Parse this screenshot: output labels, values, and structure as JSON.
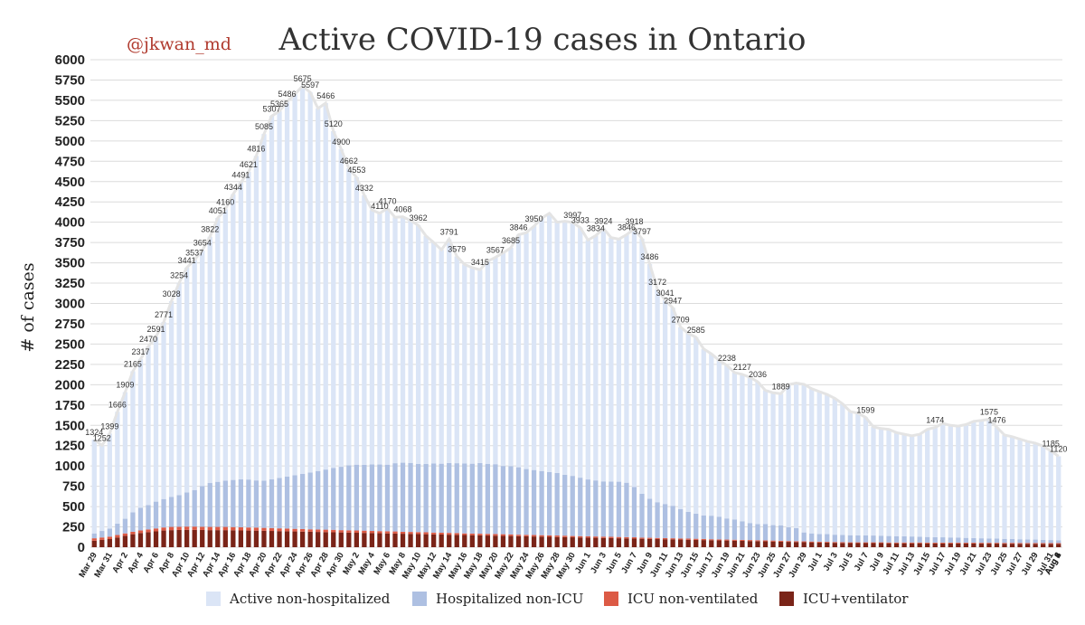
{
  "header": {
    "handle": "@jkwan_md",
    "title": "Active COVID-19 cases in Ontario"
  },
  "chart_data": {
    "type": "bar",
    "stacked": true,
    "title": "Active COVID-19 cases in Ontario",
    "xlabel": "",
    "ylabel": "# of cases",
    "ylim": [
      0,
      6000
    ],
    "yticks": [
      0,
      250,
      500,
      750,
      1000,
      1250,
      1500,
      1750,
      2000,
      2250,
      2500,
      2750,
      3000,
      3250,
      3500,
      3750,
      4000,
      4250,
      4500,
      4750,
      5000,
      5250,
      5500,
      5750,
      6000
    ],
    "grid": true,
    "legend_position": "bottom",
    "x_tick_labels": [
      "Mar 29",
      "Mar 31",
      "Apr 2",
      "Apr 4",
      "Apr 6",
      "Apr 8",
      "Apr 10",
      "Apr 12",
      "Apr 14",
      "Apr 16",
      "Apr 18",
      "Apr 20",
      "Apr 22",
      "Apr 24",
      "Apr 26",
      "Apr 28",
      "Apr 30",
      "May 2",
      "May 4",
      "May 6",
      "May 8",
      "May 10",
      "May 12",
      "May 14",
      "May 16",
      "May 18",
      "May 20",
      "May 22",
      "May 24",
      "May 26",
      "May 28",
      "May 30",
      "Jun 1",
      "Jun 3",
      "Jun 5",
      "Jun 7",
      "Jun 9",
      "Jun 11",
      "Jun 13",
      "Jun 15",
      "Jun 17",
      "Jun 19",
      "Jun 21",
      "Jun 23",
      "Jun 25",
      "Jun 27",
      "Jun 29",
      "Jul 1",
      "Jul 3",
      "Jul 5",
      "Jul 7",
      "Jul 9",
      "Jul 11",
      "Jul 13",
      "Jul 15",
      "Jul 17",
      "Jul 19",
      "Jul 21",
      "Jul 23",
      "Jul 25",
      "Jul 27",
      "Jul 29",
      "Jul 31",
      "Aug 2",
      "Aug 4",
      "Aug 6"
    ],
    "total": [
      1324,
      1252,
      1399,
      1666,
      1909,
      2165,
      2317,
      2470,
      2591,
      2771,
      3028,
      3254,
      3441,
      3537,
      3654,
      3822,
      4051,
      4160,
      4344,
      4491,
      4621,
      4816,
      5085,
      5307,
      5365,
      5486,
      5575,
      5675,
      5597,
      5400,
      5466,
      5120,
      4900,
      4662,
      4553,
      4332,
      4150,
      4110,
      4170,
      4060,
      4068,
      4020,
      3962,
      3832,
      3750,
      3660,
      3791,
      3579,
      3480,
      3440,
      3415,
      3520,
      3567,
      3622,
      3685,
      3846,
      3870,
      3950,
      4050,
      4110,
      4000,
      4012,
      3997,
      3933,
      3780,
      3834,
      3924,
      3810,
      3792,
      3846,
      3918,
      3797,
      3486,
      3172,
      3041,
      2947,
      2709,
      2630,
      2585,
      2440,
      2380,
      2300,
      2238,
      2150,
      2127,
      2090,
      2036,
      1930,
      1900,
      1889,
      2000,
      2020,
      2005,
      1950,
      1915,
      1880,
      1832,
      1766,
      1669,
      1650,
      1599,
      1480,
      1460,
      1450,
      1410,
      1390,
      1370,
      1390,
      1450,
      1474,
      1524,
      1500,
      1490,
      1510,
      1550,
      1560,
      1575,
      1476,
      1380,
      1360,
      1330,
      1300,
      1280,
      1245,
      1185,
      1120
    ],
    "series": [
      {
        "name": "ICU+ventilator",
        "color": "#7a2418",
        "values": [
          80,
          90,
          100,
          120,
          140,
          160,
          175,
          185,
          195,
          205,
          210,
          212,
          214,
          214,
          212,
          210,
          210,
          210,
          208,
          206,
          205,
          204,
          202,
          200,
          198,
          196,
          194,
          192,
          190,
          188,
          186,
          184,
          182,
          180,
          178,
          176,
          174,
          172,
          170,
          168,
          166,
          164,
          162,
          160,
          158,
          156,
          154,
          152,
          150,
          148,
          146,
          144,
          142,
          140,
          138,
          136,
          134,
          132,
          130,
          128,
          126,
          124,
          122,
          120,
          118,
          116,
          114,
          112,
          110,
          108,
          106,
          104,
          102,
          100,
          98,
          96,
          94,
          92,
          90,
          88,
          86,
          84,
          82,
          80,
          78,
          76,
          74,
          72,
          70,
          68,
          66,
          64,
          62,
          60,
          58,
          56,
          54,
          52,
          50,
          50,
          50,
          50,
          50,
          48,
          48,
          48,
          48,
          48,
          46,
          46,
          46,
          46,
          45,
          45,
          45,
          44,
          44,
          44,
          43,
          43,
          42,
          42,
          42,
          41,
          40,
          40
        ]
      },
      {
        "name": "ICU non-ventilated",
        "color": "#dc5a45",
        "values": [
          30,
          30,
          30,
          30,
          30,
          30,
          32,
          34,
          36,
          38,
          40,
          40,
          40,
          40,
          40,
          40,
          40,
          40,
          40,
          40,
          38,
          38,
          36,
          36,
          34,
          34,
          32,
          32,
          30,
          30,
          30,
          30,
          28,
          28,
          28,
          28,
          26,
          26,
          26,
          26,
          24,
          24,
          24,
          24,
          22,
          22,
          22,
          22,
          20,
          20,
          20,
          20,
          20,
          20,
          20,
          18,
          18,
          18,
          18,
          18,
          18,
          18,
          16,
          16,
          16,
          16,
          16,
          16,
          16,
          16,
          16,
          14,
          14,
          14,
          14,
          14,
          14,
          14,
          14,
          14,
          12,
          12,
          12,
          12,
          12,
          12,
          12,
          12,
          12,
          12,
          10,
          10,
          10,
          10,
          10,
          10,
          10,
          10,
          10,
          10,
          10,
          10,
          10,
          10,
          10,
          10,
          10,
          10,
          10,
          10,
          10,
          10,
          10,
          10,
          10,
          10,
          10,
          10,
          10,
          10,
          10,
          10,
          10,
          10,
          10,
          10
        ]
      },
      {
        "name": "Hospitalized non-ICU",
        "color": "#aec0e2",
        "values": [
          60,
          80,
          100,
          140,
          180,
          240,
          280,
          300,
          330,
          350,
          370,
          390,
          420,
          450,
          500,
          540,
          555,
          570,
          580,
          590,
          590,
          580,
          580,
          600,
          620,
          640,
          660,
          680,
          700,
          720,
          740,
          760,
          780,
          800,
          810,
          810,
          820,
          820,
          820,
          840,
          850,
          850,
          840,
          840,
          850,
          850,
          860,
          860,
          860,
          860,
          870,
          860,
          860,
          840,
          840,
          830,
          810,
          800,
          790,
          780,
          770,
          750,
          740,
          720,
          700,
          690,
          680,
          680,
          680,
          670,
          620,
          540,
          480,
          440,
          420,
          400,
          360,
          330,
          310,
          290,
          290,
          280,
          260,
          250,
          230,
          210,
          200,
          200,
          190,
          190,
          170,
          160,
          110,
          100,
          95,
          95,
          90,
          90,
          88,
          85,
          85,
          84,
          82,
          80,
          78,
          76,
          74,
          72,
          70,
          68,
          66,
          64,
          62,
          60,
          58,
          56,
          54,
          52,
          50,
          48,
          46,
          44,
          42,
          40,
          38,
          36
        ]
      },
      {
        "name": "Active non-hospitalized",
        "color": "#dbe5f6",
        "values": []
      }
    ],
    "data_labels_visible": [
      "1324",
      "1252",
      "1399",
      "1666",
      "1909",
      "2165",
      "2317",
      "2470",
      "2591",
      "2771",
      "3028",
      "3254",
      "3441",
      "3537",
      "3654",
      "3822",
      "4051",
      "4160",
      "4344",
      "4491",
      "4621",
      "4816",
      "5085",
      "5307",
      "5365",
      "5486",
      "5675",
      "5597",
      "5466",
      "5120",
      "4900",
      "4662",
      "4553",
      "4332",
      "4170",
      "4068",
      "3962",
      "3791",
      "3579",
      "3415",
      "3567",
      "3685",
      "3846",
      "3950",
      "4110",
      "3997",
      "3933",
      "3834",
      "3924",
      "3846",
      "3918",
      "3797",
      "3486",
      "3172",
      "3041",
      "2947",
      "2709",
      "2585",
      "2238",
      "2127",
      "2036",
      "1889",
      "1599",
      "1474",
      "1575",
      "1476",
      "1185",
      "1120"
    ]
  }
}
